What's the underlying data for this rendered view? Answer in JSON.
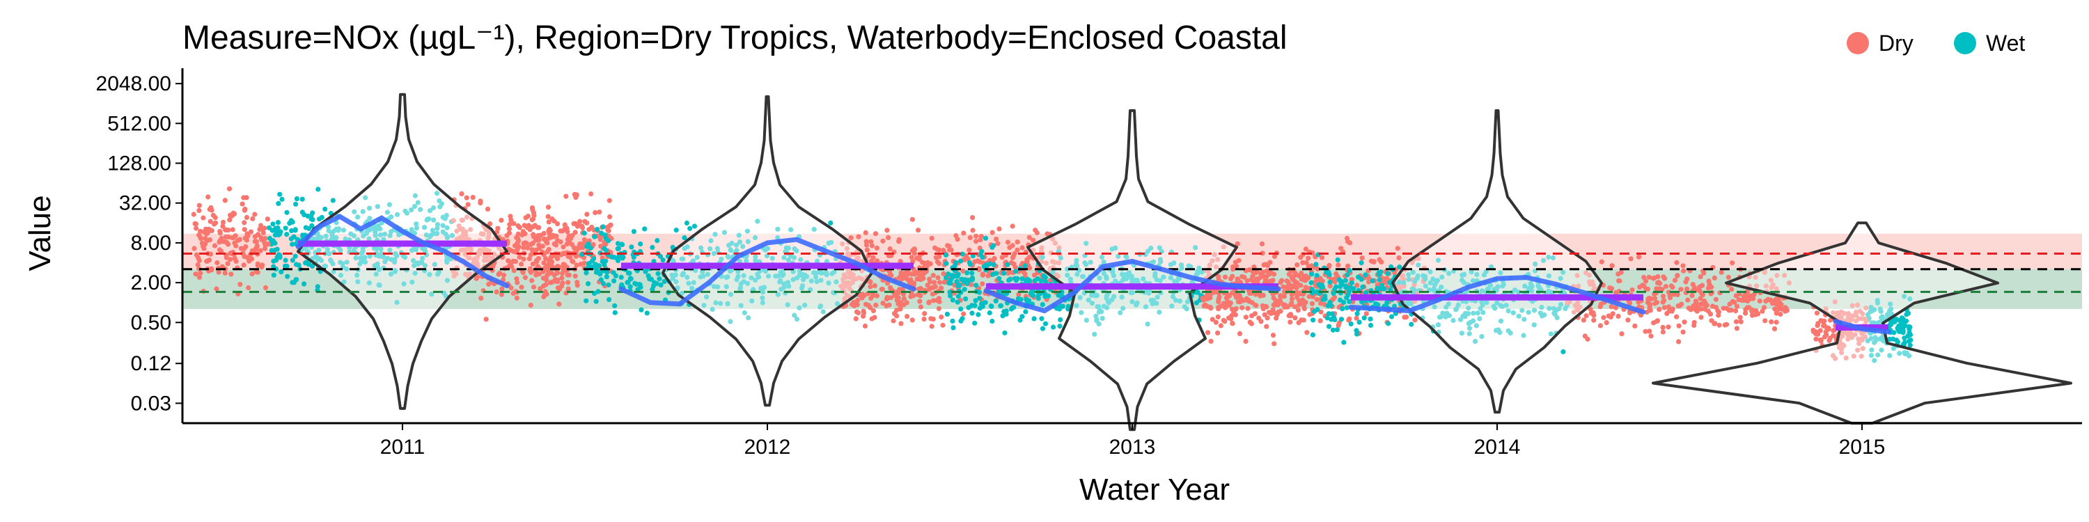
{
  "chart_data": {
    "type": "scatter",
    "title": "Measure=NOx (µgL⁻¹), Region=Dry Tropics, Waterbody=Enclosed Coastal",
    "xlabel": "Water Year",
    "ylabel": "Value",
    "y_scale": "log2",
    "ylim": [
      0.015,
      3500
    ],
    "y_ticks": [
      0.03,
      0.12,
      0.5,
      2,
      8,
      32,
      128,
      512,
      2048
    ],
    "y_tick_labels": [
      "0.03",
      "0.12",
      "0.50",
      "2.00",
      "8.00",
      "32.00",
      "128.00",
      "512.00",
      "2048.00"
    ],
    "categories": [
      "2011",
      "2012",
      "2013",
      "2014",
      "2015"
    ],
    "legend": {
      "position": "top-right",
      "entries": [
        {
          "name": "Dry",
          "color": "#F8766D"
        },
        {
          "name": "Wet",
          "color": "#00BFC4"
        }
      ]
    },
    "series": [
      {
        "name": "Dry",
        "color": "#F8766D"
      },
      {
        "name": "Wet",
        "color": "#00BFC4"
      }
    ],
    "reference_lines": [
      {
        "value": 5.5,
        "color": "#E31A1C",
        "style": "dashed"
      },
      {
        "value": 3.2,
        "color": "#000000",
        "style": "dashed"
      },
      {
        "value": 1.45,
        "color": "#1B7F3B",
        "style": "dashed"
      }
    ],
    "reference_bands": [
      {
        "from": 3.2,
        "to": 11,
        "color": "#F8766D"
      },
      {
        "from": 0.8,
        "to": 3.2,
        "color": "#2E8B57"
      }
    ],
    "annual_means": [
      {
        "year": "2011",
        "value": 7.8
      },
      {
        "year": "2012",
        "value": 3.6
      },
      {
        "year": "2013",
        "value": 1.75
      },
      {
        "year": "2014",
        "value": 1.2
      },
      {
        "year": "2015",
        "value": 0.42
      }
    ],
    "trend_points": [
      {
        "year": "2011",
        "values": [
          7,
          14,
          20,
          13,
          19,
          12,
          8,
          6,
          4,
          2.5,
          1.8
        ]
      },
      {
        "year": "2012",
        "values": [
          1.6,
          1.0,
          0.95,
          2,
          5,
          8,
          9,
          6,
          4,
          2.4,
          1.6
        ]
      },
      {
        "year": "2013",
        "values": [
          1.5,
          1.0,
          0.75,
          1.4,
          3.5,
          4.2,
          3.2,
          2.4,
          1.9,
          1.7,
          1.6
        ]
      },
      {
        "year": "2014",
        "values": [
          0.85,
          0.8,
          0.75,
          1.1,
          1.7,
          2.3,
          2.4,
          1.9,
          1.4,
          1.0,
          0.72
        ]
      },
      {
        "year": "2015",
        "values": [
          0.52,
          0.4,
          0.36
        ]
      }
    ],
    "distributions": [
      {
        "year": "2011",
        "min": 0.025,
        "max": 1400,
        "median": 8,
        "widths": [
          0.02,
          0.05,
          0.1,
          0.18,
          0.28,
          0.45,
          0.7,
          1.0,
          0.85,
          0.55,
          0.3,
          0.14,
          0.06,
          0.03,
          0.02
        ]
      },
      {
        "year": "2012",
        "min": 0.028,
        "max": 1300,
        "median": 3.5,
        "widths": [
          0.02,
          0.06,
          0.14,
          0.3,
          0.55,
          0.85,
          1.0,
          0.9,
          0.62,
          0.3,
          0.12,
          0.06,
          0.03,
          0.02,
          0.01
        ]
      },
      {
        "year": "2013",
        "min": 0.012,
        "max": 800,
        "median": 1.8,
        "widths": [
          0.02,
          0.05,
          0.14,
          0.4,
          0.7,
          0.6,
          0.55,
          0.85,
          1.0,
          0.55,
          0.15,
          0.06,
          0.04,
          0.03,
          0.02
        ]
      },
      {
        "year": "2014",
        "min": 0.022,
        "max": 800,
        "median": 1.2,
        "widths": [
          0.02,
          0.06,
          0.18,
          0.45,
          0.65,
          0.9,
          1.0,
          0.85,
          0.55,
          0.25,
          0.1,
          0.05,
          0.03,
          0.02,
          0.01
        ]
      },
      {
        "year": "2015",
        "min": 0.015,
        "max": 16,
        "median": 0.4,
        "widths": [
          0.05,
          0.3,
          1.0,
          0.5,
          0.12,
          0.1,
          0.25,
          0.65,
          0.4,
          0.08,
          0.02
        ]
      }
    ]
  }
}
